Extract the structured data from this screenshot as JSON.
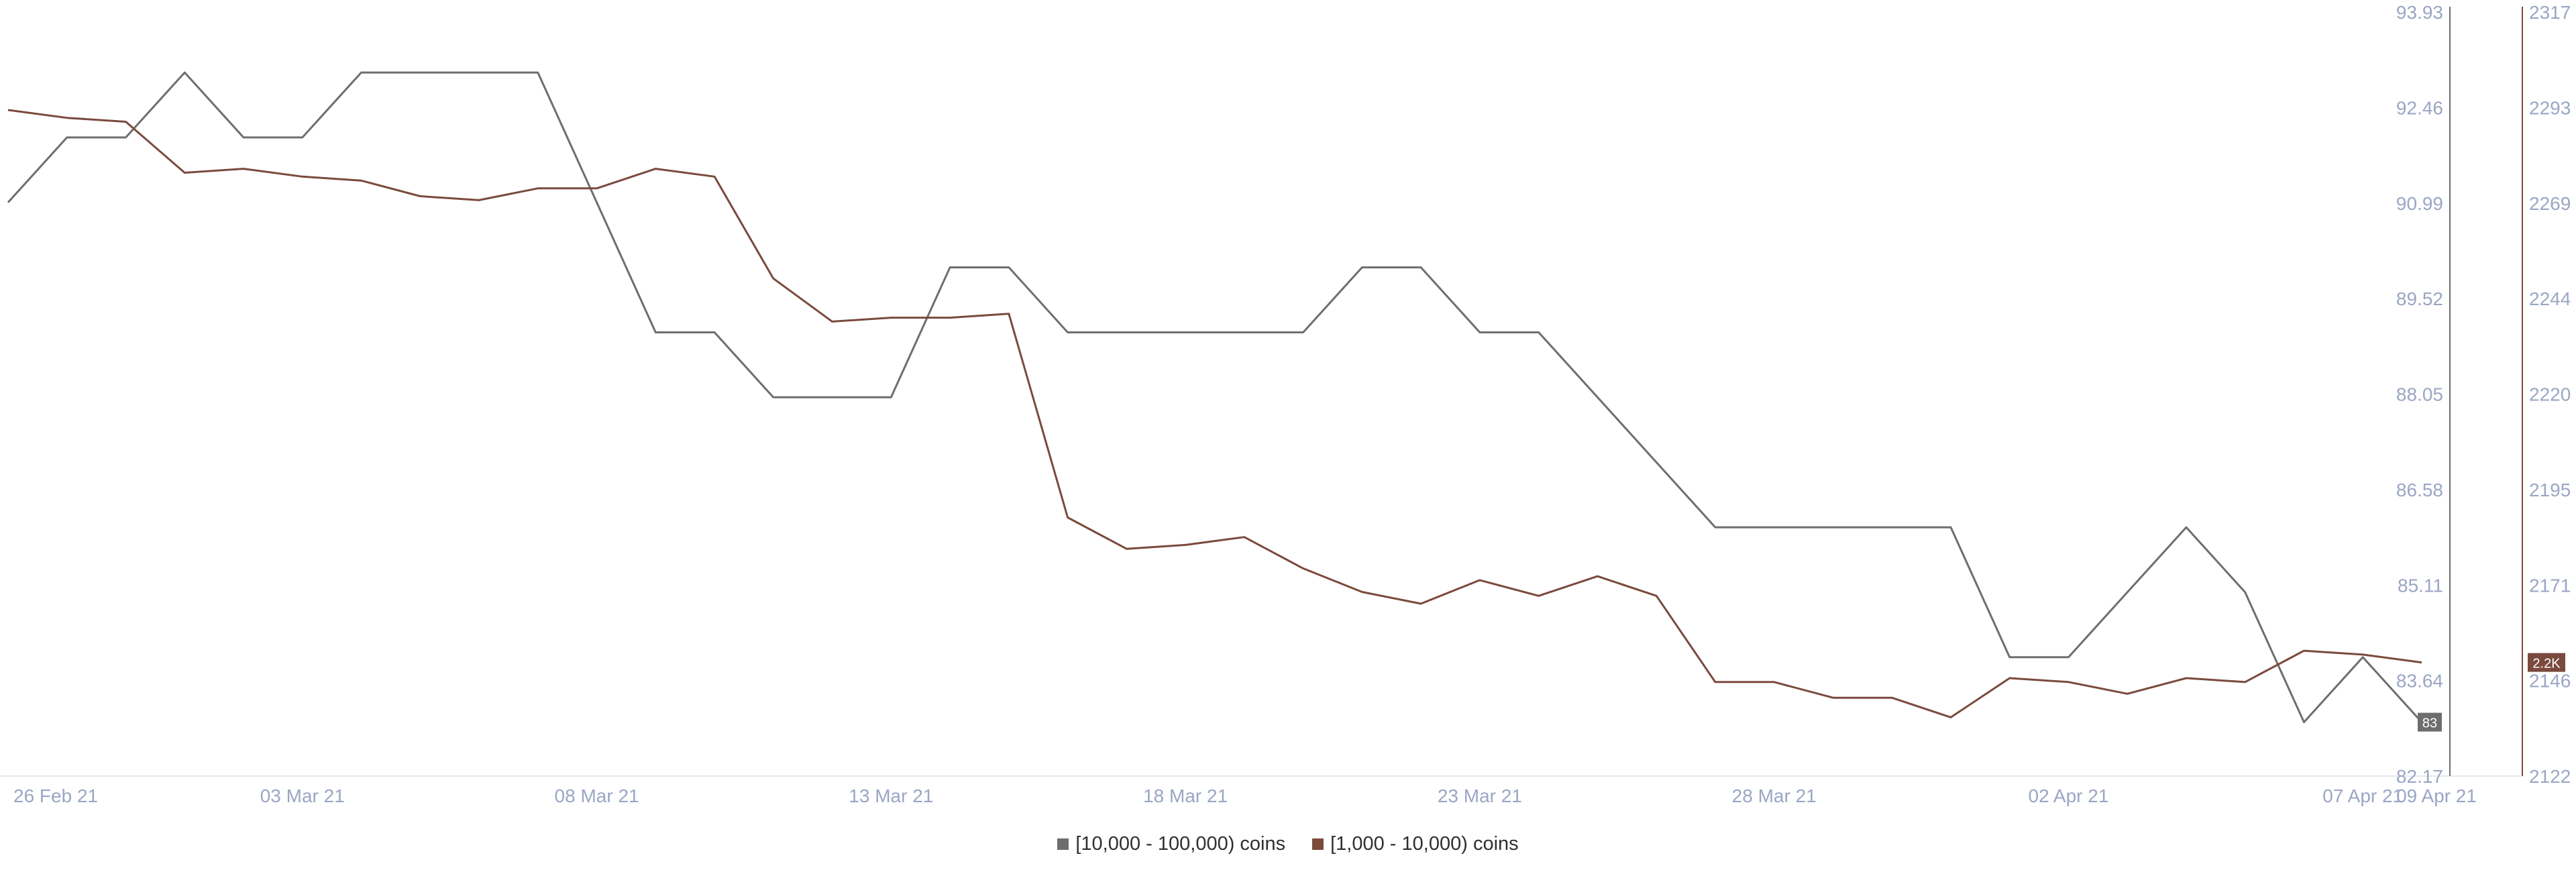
{
  "chart_data": {
    "type": "line",
    "title": "",
    "xlabel": "",
    "ylabel": "",
    "x": [
      "26 Feb 21",
      "27 Feb 21",
      "28 Feb 21",
      "01 Mar 21",
      "02 Mar 21",
      "03 Mar 21",
      "04 Mar 21",
      "05 Mar 21",
      "06 Mar 21",
      "07 Mar 21",
      "08 Mar 21",
      "09 Mar 21",
      "10 Mar 21",
      "11 Mar 21",
      "12 Mar 21",
      "13 Mar 21",
      "14 Mar 21",
      "15 Mar 21",
      "16 Mar 21",
      "17 Mar 21",
      "18 Mar 21",
      "19 Mar 21",
      "20 Mar 21",
      "21 Mar 21",
      "22 Mar 21",
      "23 Mar 21",
      "24 Mar 21",
      "25 Mar 21",
      "26 Mar 21",
      "27 Mar 21",
      "28 Mar 21",
      "29 Mar 21",
      "30 Mar 21",
      "31 Mar 21",
      "01 Apr 21",
      "02 Apr 21",
      "03 Apr 21",
      "04 Apr 21",
      "05 Apr 21",
      "06 Apr 21",
      "07 Apr 21",
      "08 Apr 21"
    ],
    "x_tick_labels": [
      "26 Feb 21",
      "03 Mar 21",
      "08 Mar 21",
      "13 Mar 21",
      "18 Mar 21",
      "23 Mar 21",
      "28 Mar 21",
      "02 Apr 21",
      "07 Apr 21",
      "09 Apr 21"
    ],
    "series": [
      {
        "name": "[10,000 - 100,000) coins",
        "color": "#6e6e6e",
        "axis": "left",
        "values": [
          91,
          92,
          92,
          93,
          92,
          92,
          93,
          93,
          93,
          93,
          91,
          89,
          89,
          88,
          88,
          88,
          90,
          90,
          89,
          89,
          89,
          89,
          89,
          90,
          90,
          89,
          89,
          88,
          87,
          86,
          86,
          86,
          86,
          86,
          84,
          84,
          85,
          86,
          85,
          83,
          84,
          83
        ],
        "end_label": "83"
      },
      {
        "name": "[1,000 - 10,000) coins",
        "color": "#7a4a3c",
        "axis": "right",
        "values": [
          2292,
          2290,
          2289,
          2276,
          2277,
          2275,
          2274,
          2270,
          2269,
          2272,
          2272,
          2277,
          2275,
          2249,
          2238,
          2239,
          2239,
          2240,
          2188,
          2180,
          2181,
          2183,
          2175,
          2169,
          2166,
          2172,
          2168,
          2173,
          2168,
          2146,
          2146,
          2142,
          2142,
          2137,
          2147,
          2146,
          2143,
          2147,
          2146,
          2154,
          2153,
          2151
        ],
        "end_label": "2.2K"
      }
    ],
    "y_left": {
      "ticks": [
        "82.17",
        "83.64",
        "85.11",
        "86.58",
        "88.05",
        "89.52",
        "90.99",
        "92.46",
        "93.93"
      ],
      "ylim": [
        82.17,
        93.93
      ]
    },
    "y_right": {
      "ticks": [
        "2122",
        "2146",
        "2171",
        "2195",
        "2220",
        "2244",
        "2269",
        "2293",
        "2317"
      ],
      "ylim": [
        2122,
        2317
      ]
    },
    "grid": false,
    "legend_position": "bottom-center"
  }
}
